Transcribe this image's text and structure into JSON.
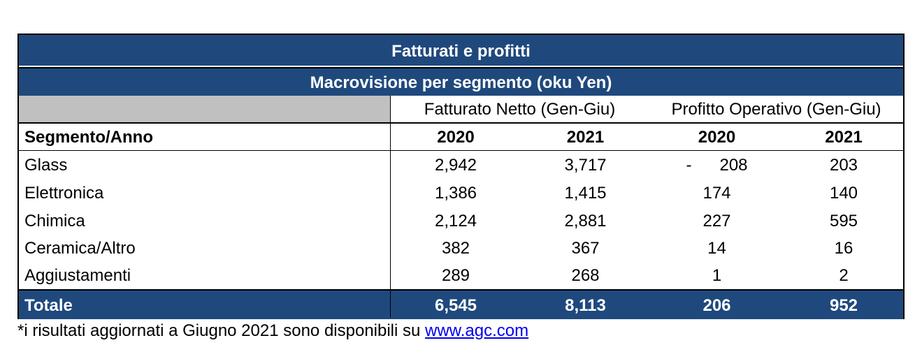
{
  "table": {
    "title": "Fatturati e profitti",
    "subtitle": "Macrovisione per segmento (oku Yen)",
    "group_headers": [
      "Fatturato Netto (Gen-Giu)",
      "Profitto Operativo (Gen-Giu)"
    ],
    "column_headers": [
      "Segmento/Anno",
      "2020",
      "2021",
      "2020",
      "2021"
    ],
    "rows": [
      {
        "segment": "Glass",
        "values": [
          "2,942",
          "3,717",
          "-      208",
          "203"
        ]
      },
      {
        "segment": "Elettronica",
        "values": [
          "1,386",
          "1,415",
          "174",
          "140"
        ]
      },
      {
        "segment": "Chimica",
        "values": [
          "2,124",
          "2,881",
          "227",
          "595"
        ]
      },
      {
        "segment": "Ceramica/Altro",
        "values": [
          "382",
          "367",
          "14",
          "16"
        ]
      },
      {
        "segment": "Aggiustamenti",
        "values": [
          "289",
          "268",
          "1",
          "2"
        ]
      }
    ],
    "total": {
      "label": "Totale",
      "values": [
        "6,545",
        "8,113",
        "206",
        "952"
      ]
    }
  },
  "footnote": {
    "text": "*i risultati aggiornati a Giugno 2021 sono disponibili su ",
    "link": "www.agc.com"
  },
  "colors": {
    "header_blue": "#1f497d",
    "band_gray": "#c0c0c0",
    "link": "#0000ee"
  }
}
